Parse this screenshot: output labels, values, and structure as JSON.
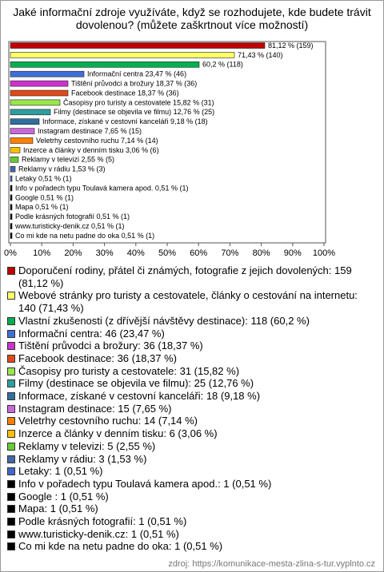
{
  "chart_data": {
    "type": "bar",
    "title": "Jaké informační zdroje využíváte, když se rozhodujete, kde budete trávit dovolenou? (můžete zaškrtnout více možností)",
    "categories": [
      "Doporučení rodiny, přátel či známých, fotografie z jejich dovolených: 159 (81,12 %)",
      "Webové stránky pro turisty a cestovatele, články o cestování na internetu: 140 (71,43 %)",
      "Vlastní zkušenosti (z dřívější návštěvy destinace): 118 (60,2 %)",
      "Informační centra: 46 (23,47 %)",
      "Tištění průvodci a brožury: 36 (18,37 %)",
      "Facebook destinace: 36 (18,37 %)",
      "Časopisy pro turisty a cestovatele: 31 (15,82 %)",
      "Filmy (destinace se objevila ve filmu): 25 (12,76 %)",
      "Informace, získané v cestovní kanceláři: 18 (9,18 %)",
      "Instagram destinace: 15 (7,65 %)",
      "Veletrhy cestovního ruchu: 14 (7,14 %)",
      "Inzerce a články v denním tisku: 6 (3,06 %)",
      "Reklamy v televizi: 5 (2,55 %)",
      "Reklamy v rádiu: 3 (1,53 %)",
      "Letaky: 1 (0,51 %)",
      "Info v pořadech typu Toulavá kamera apod.: 1 (0,51 %)",
      "Google : 1 (0,51 %)",
      "Mapa: 1 (0,51 %)",
      "Podle krásných fotografií: 1 (0,51 %)",
      "www.turisticky-denik.cz: 1 (0,51 %)",
      "Co mi kde na netu padne do oka: 1 (0,51 %)"
    ],
    "values": [
      81.12,
      71.43,
      60.2,
      23.47,
      18.37,
      18.37,
      15.82,
      12.76,
      9.18,
      7.65,
      7.14,
      3.06,
      2.55,
      1.53,
      0.51,
      0.51,
      0.51,
      0.51,
      0.51,
      0.51,
      0.51
    ],
    "value_labels": [
      "81,12 % (159)",
      "71,43 % (140)",
      "60,2 % (118)",
      "Informační centra 23,47 % (46)",
      "Tištění průvodci a brožury 18,37 % (36)",
      "Facebook destinace 18,37 % (36)",
      "Časopisy pro turisty a cestovatele 15,82 % (31)",
      "Filmy (destinace se objevila ve filmu) 12,76 % (25)",
      "Informace, získané v cestovní kanceláři 9,18 % (18)",
      "Instagram destinace 7,65 % (15)",
      "Veletrhy cestovního ruchu 7,14 % (14)",
      "Inzerce a články v denním tisku 3,06 % (6)",
      "Reklamy v televizi 2,55 % (5)",
      "Reklamy v rádiu 1,53 % (3)",
      "Letaky 0,51 % (1)",
      "Info v pořadech typu Toulavá kamera apod. 0,51 % (1)",
      "Google  0,51 % (1)",
      "Mapa 0,51 % (1)",
      "Podle krásných fotografií 0,51 % (1)",
      "www.turisticky-denik.cz 0,51 % (1)",
      "Co mi kde na netu padne do oka 0,51 % (1)"
    ],
    "colors": [
      "#c00000",
      "#ffff66",
      "#00b050",
      "#3d6fd6",
      "#cc33cc",
      "#e04a1a",
      "#99e64d",
      "#2e9e9e",
      "#2f6f9f",
      "#cc66dd",
      "#ff8000",
      "#ffc000",
      "#66cc33",
      "#4466aa",
      "#4466cc",
      "#000000",
      "#000000",
      "#000000",
      "#000000",
      "#000000",
      "#000000"
    ],
    "xlim": [
      0,
      100
    ],
    "xticks": [
      {
        "value": 0,
        "label": "0%"
      },
      {
        "value": 10,
        "label": "10%"
      },
      {
        "value": 20,
        "label": "20%"
      },
      {
        "value": 30,
        "label": "30%"
      },
      {
        "value": 40,
        "label": "40%"
      },
      {
        "value": 50,
        "label": "50%"
      },
      {
        "value": 60,
        "label": "60%"
      },
      {
        "value": 70,
        "label": "70%"
      },
      {
        "value": 80,
        "label": "80%"
      },
      {
        "value": 90,
        "label": "90%"
      },
      {
        "value": 100,
        "label": "100%"
      }
    ],
    "grid": false,
    "source": "zdroj: https://komunikace-mesta-zlina-s-tur.vyplnto.cz"
  }
}
